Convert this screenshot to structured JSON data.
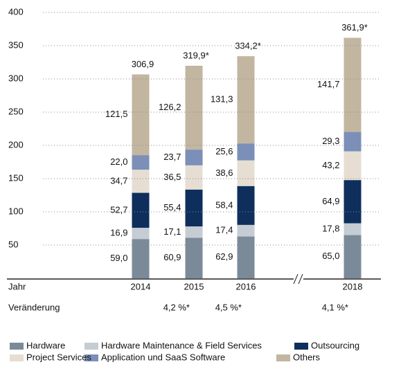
{
  "chart_data": {
    "type": "stacked_bar",
    "categories": [
      "2014",
      "2015",
      "2016",
      "2018"
    ],
    "series": [
      {
        "name": "Hardware",
        "color": "#7b8a99",
        "values": [
          59.0,
          60.9,
          62.9,
          65.0
        ],
        "value_labels": [
          "59,0",
          "60,9",
          "62,9",
          "65,0"
        ]
      },
      {
        "name": "Hardware Maintenance & Field Services",
        "color": "#c5ccd3",
        "values": [
          16.9,
          17.1,
          17.4,
          17.8
        ],
        "value_labels": [
          "16,9",
          "17,1",
          "17,4",
          "17,8"
        ]
      },
      {
        "name": "Outsourcing",
        "color": "#0e2f5c",
        "values": [
          52.7,
          55.4,
          58.4,
          64.9
        ],
        "value_labels": [
          "52,7",
          "55,4",
          "58,4",
          "64,9"
        ]
      },
      {
        "name": "Project Services",
        "color": "#e6ded3",
        "values": [
          34.7,
          36.5,
          38.6,
          43.2
        ],
        "value_labels": [
          "34,7",
          "36,5",
          "38,6",
          "43,2"
        ]
      },
      {
        "name": "Application und SaaS Software",
        "color": "#7b8fb8",
        "values": [
          22.0,
          23.7,
          25.6,
          29.3
        ],
        "value_labels": [
          "22,0",
          "23,7",
          "25,6",
          "29,3"
        ]
      },
      {
        "name": "Others",
        "color": "#c2b6a1",
        "values": [
          121.5,
          126.2,
          131.3,
          141.7
        ],
        "value_labels": [
          "121,5",
          "126,2",
          "131,3",
          "141,7"
        ]
      }
    ],
    "totals": [
      306.9,
      319.9,
      334.2,
      361.9
    ],
    "total_labels": [
      "306,9",
      "319,9*",
      "334,2*",
      "361,9*"
    ],
    "x_label": "Jahr",
    "change_label": "Veränderung",
    "change_values": [
      "4,2 %*",
      "4,5 %*",
      "4,1 %*"
    ],
    "ylim": [
      0,
      400
    ],
    "yticks": [
      50,
      100,
      150,
      200,
      250,
      300,
      350,
      400
    ],
    "grid": true
  }
}
